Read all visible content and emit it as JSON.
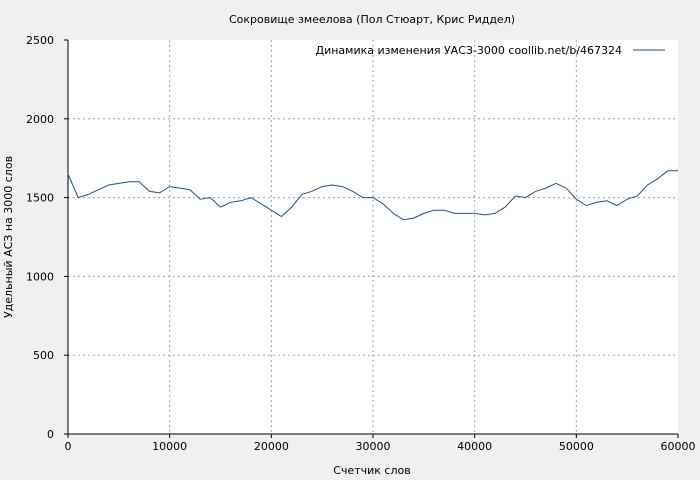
{
  "chart_data": {
    "type": "line",
    "title": "Сокровище змеелова (Пол Стюарт, Крис Риддел)",
    "xlabel": "Счетчик слов",
    "ylabel": "Удельный АСЗ на 3000 слов",
    "xlim": [
      0,
      60000
    ],
    "ylim": [
      0,
      2500
    ],
    "x_ticks": [
      "0",
      "10000",
      "20000",
      "30000",
      "40000",
      "50000",
      "60000"
    ],
    "y_ticks": [
      "0",
      "500",
      "1000",
      "1500",
      "2000",
      "2500"
    ],
    "grid": true,
    "legend_position": "top-right",
    "series": [
      {
        "name": "Динамика изменения УАСЗ-3000  coollib.net/b/467324",
        "color": "#1f4fa0",
        "points": [
          [
            0,
            1650
          ],
          [
            1000,
            1500
          ],
          [
            2000,
            1520
          ],
          [
            3000,
            1550
          ],
          [
            4000,
            1580
          ],
          [
            5000,
            1590
          ],
          [
            6000,
            1600
          ],
          [
            7000,
            1600
          ],
          [
            8000,
            1540
          ],
          [
            9000,
            1530
          ],
          [
            10000,
            1570
          ],
          [
            11000,
            1560
          ],
          [
            12000,
            1550
          ],
          [
            13000,
            1490
          ],
          [
            14000,
            1500
          ],
          [
            15000,
            1440
          ],
          [
            16000,
            1470
          ],
          [
            17000,
            1480
          ],
          [
            18000,
            1500
          ],
          [
            19000,
            1460
          ],
          [
            20000,
            1420
          ],
          [
            21000,
            1380
          ],
          [
            22000,
            1440
          ],
          [
            23000,
            1520
          ],
          [
            24000,
            1540
          ],
          [
            25000,
            1570
          ],
          [
            26000,
            1580
          ],
          [
            27000,
            1570
          ],
          [
            28000,
            1540
          ],
          [
            29000,
            1500
          ],
          [
            30000,
            1500
          ],
          [
            31000,
            1460
          ],
          [
            32000,
            1400
          ],
          [
            33000,
            1360
          ],
          [
            34000,
            1370
          ],
          [
            35000,
            1400
          ],
          [
            36000,
            1420
          ],
          [
            37000,
            1420
          ],
          [
            38000,
            1400
          ],
          [
            39000,
            1400
          ],
          [
            40000,
            1400
          ],
          [
            41000,
            1390
          ],
          [
            42000,
            1400
          ],
          [
            43000,
            1440
          ],
          [
            44000,
            1510
          ],
          [
            45000,
            1500
          ],
          [
            46000,
            1540
          ],
          [
            47000,
            1560
          ],
          [
            48000,
            1590
          ],
          [
            49000,
            1560
          ],
          [
            50000,
            1490
          ],
          [
            51000,
            1450
          ],
          [
            52000,
            1470
          ],
          [
            53000,
            1480
          ],
          [
            54000,
            1450
          ],
          [
            55000,
            1490
          ],
          [
            56000,
            1510
          ],
          [
            57000,
            1580
          ],
          [
            58000,
            1620
          ],
          [
            59000,
            1670
          ],
          [
            60000,
            1670
          ]
        ]
      }
    ]
  }
}
